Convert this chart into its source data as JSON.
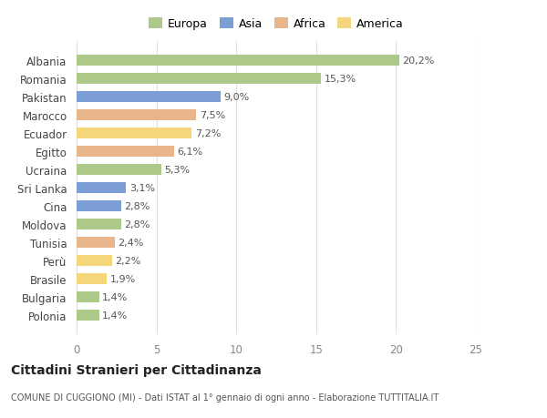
{
  "categories": [
    "Albania",
    "Romania",
    "Pakistan",
    "Marocco",
    "Ecuador",
    "Egitto",
    "Ucraina",
    "Sri Lanka",
    "Cina",
    "Moldova",
    "Tunisia",
    "Perù",
    "Brasile",
    "Bulgaria",
    "Polonia"
  ],
  "values": [
    20.2,
    15.3,
    9.0,
    7.5,
    7.2,
    6.1,
    5.3,
    3.1,
    2.8,
    2.8,
    2.4,
    2.2,
    1.9,
    1.4,
    1.4
  ],
  "labels": [
    "20,2%",
    "15,3%",
    "9,0%",
    "7,5%",
    "7,2%",
    "6,1%",
    "5,3%",
    "3,1%",
    "2,8%",
    "2,8%",
    "2,4%",
    "2,2%",
    "1,9%",
    "1,4%",
    "1,4%"
  ],
  "colors": [
    "#adc98a",
    "#adc98a",
    "#7b9fd4",
    "#e8b48a",
    "#f5d67a",
    "#e8b48a",
    "#adc98a",
    "#7b9fd4",
    "#7b9fd4",
    "#adc98a",
    "#e8b48a",
    "#f5d67a",
    "#f5d67a",
    "#adc98a",
    "#adc98a"
  ],
  "legend_labels": [
    "Europa",
    "Asia",
    "Africa",
    "America"
  ],
  "legend_colors": [
    "#adc98a",
    "#7b9fd4",
    "#e8b48a",
    "#f5d67a"
  ],
  "title": "Cittadini Stranieri per Cittadinanza",
  "subtitle": "COMUNE DI CUGGIONO (MI) - Dati ISTAT al 1° gennaio di ogni anno - Elaborazione TUTTITALIA.IT",
  "xlim": [
    0,
    25
  ],
  "xticks": [
    0,
    5,
    10,
    15,
    20,
    25
  ],
  "background_color": "#ffffff",
  "grid_color": "#e0e0e0"
}
